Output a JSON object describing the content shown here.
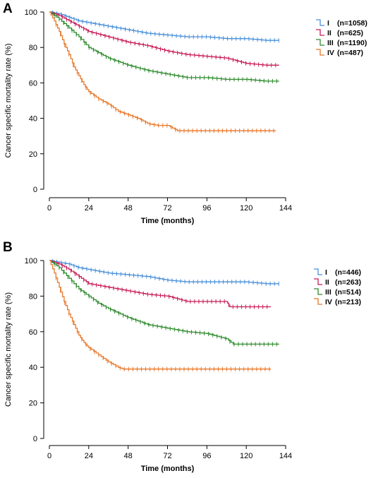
{
  "chart_data": [
    {
      "panel": "A",
      "type": "line",
      "xlabel": "Time (months)",
      "ylabel": "Cancer specific mortality rate (%)",
      "xlim": [
        0,
        144
      ],
      "ylim": [
        0,
        100
      ],
      "xticks": [
        0,
        24,
        48,
        72,
        96,
        120,
        144
      ],
      "yticks": [
        0,
        20,
        40,
        60,
        80,
        100
      ],
      "legend": "top-right",
      "series": [
        {
          "name": "I",
          "n_label": "(n=1058)",
          "color": "#4a90d9",
          "x": [
            0,
            6,
            12,
            18,
            24,
            36,
            48,
            60,
            72,
            84,
            96,
            108,
            120,
            132,
            140
          ],
          "y": [
            100,
            99,
            97,
            95,
            94,
            92,
            90,
            88,
            87,
            86,
            86,
            85,
            85,
            84,
            84
          ]
        },
        {
          "name": "II",
          "n_label": "(n=625)",
          "color": "#c81e5a",
          "x": [
            0,
            6,
            12,
            18,
            24,
            36,
            48,
            60,
            72,
            84,
            96,
            108,
            112,
            120,
            132,
            140
          ],
          "y": [
            100,
            98,
            95,
            92,
            89,
            86,
            83,
            81,
            78,
            76,
            75,
            74,
            73,
            71,
            70,
            70
          ]
        },
        {
          "name": "III",
          "n_label": "(n=1190)",
          "color": "#2e8b2e",
          "x": [
            0,
            6,
            12,
            18,
            24,
            36,
            48,
            60,
            72,
            84,
            96,
            108,
            120,
            132,
            140
          ],
          "y": [
            100,
            96,
            91,
            86,
            80,
            74,
            70,
            67,
            65,
            63,
            63,
            62,
            62,
            61,
            61
          ]
        },
        {
          "name": "IV",
          "n_label": "(n=487)",
          "color": "#e8782a",
          "x": [
            0,
            3,
            6,
            9,
            12,
            15,
            18,
            21,
            24,
            30,
            36,
            42,
            48,
            54,
            60,
            66,
            72,
            78,
            96,
            120,
            138
          ],
          "y": [
            100,
            95,
            89,
            82,
            76,
            69,
            64,
            59,
            55,
            51,
            48,
            44,
            42,
            40,
            37,
            36,
            36,
            33,
            33,
            33,
            33
          ]
        }
      ]
    },
    {
      "panel": "B",
      "type": "line",
      "xlabel": "Time (months)",
      "ylabel": "Cancer specific mortality rate (%)",
      "xlim": [
        0,
        144
      ],
      "ylim": [
        0,
        100
      ],
      "xticks": [
        0,
        24,
        48,
        72,
        96,
        120,
        144
      ],
      "yticks": [
        0,
        20,
        40,
        60,
        80,
        100
      ],
      "legend": "top-right",
      "series": [
        {
          "name": "I",
          "n_label": "(n=446)",
          "color": "#4a90d9",
          "x": [
            0,
            6,
            12,
            18,
            24,
            36,
            48,
            60,
            72,
            84,
            96,
            108,
            120,
            132,
            140
          ],
          "y": [
            100,
            99,
            98,
            96,
            95,
            93,
            92,
            91,
            89,
            88,
            88,
            88,
            88,
            87,
            87
          ]
        },
        {
          "name": "II",
          "n_label": "(n=263)",
          "color": "#c81e5a",
          "x": [
            0,
            6,
            12,
            18,
            24,
            30,
            36,
            48,
            60,
            72,
            84,
            96,
            108,
            110,
            120,
            130,
            135
          ],
          "y": [
            100,
            98,
            95,
            91,
            87,
            86,
            85,
            83,
            81,
            80,
            77,
            77,
            77,
            74,
            74,
            74,
            74
          ]
        },
        {
          "name": "III",
          "n_label": "(n=514)",
          "color": "#2e8b2e",
          "x": [
            0,
            6,
            12,
            18,
            24,
            30,
            36,
            48,
            60,
            72,
            84,
            96,
            108,
            112,
            120,
            132,
            140
          ],
          "y": [
            100,
            96,
            90,
            84,
            80,
            76,
            73,
            68,
            64,
            62,
            60,
            59,
            56,
            53,
            53,
            53,
            53
          ]
        },
        {
          "name": "IV",
          "n_label": "(n=213)",
          "color": "#e8782a",
          "x": [
            0,
            3,
            6,
            9,
            12,
            15,
            18,
            21,
            24,
            30,
            36,
            42,
            45,
            48,
            72,
            96,
            120,
            135
          ],
          "y": [
            100,
            93,
            85,
            77,
            70,
            64,
            58,
            54,
            51,
            47,
            43,
            40,
            39,
            39,
            39,
            39,
            39,
            39
          ]
        }
      ]
    }
  ]
}
